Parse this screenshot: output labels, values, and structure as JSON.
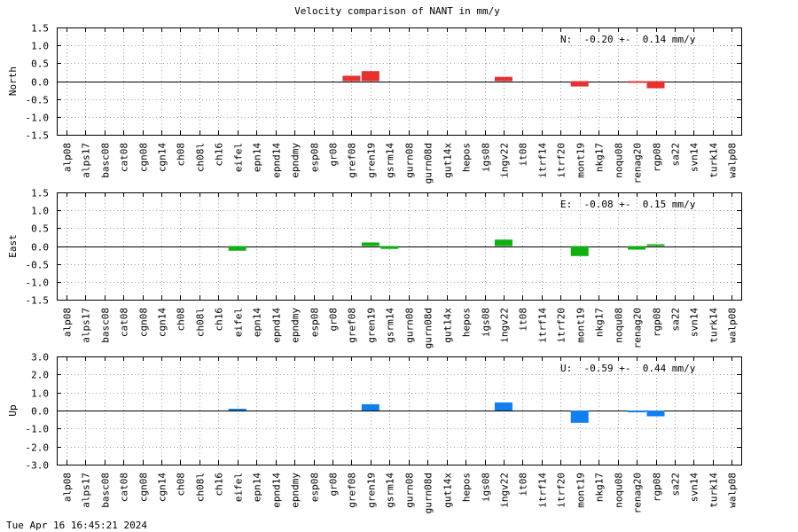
{
  "title": "Velocity comparison of NANT in mm/y",
  "footer": "Tue Apr 16 16:45:21 2024",
  "chart_data": [
    {
      "type": "bar",
      "ylabel": "North",
      "annotation": "N:  -0.20 +-  0.14 mm/y",
      "color": "#e83030",
      "ylim": [
        -1.5,
        1.5
      ],
      "yticks": [
        "1.5",
        "1.0",
        "0.5",
        "0.0",
        "-0.5",
        "-1.0",
        "-1.5"
      ],
      "ytick_values": [
        1.5,
        1.0,
        0.5,
        0.0,
        -0.5,
        -1.0,
        -1.5
      ],
      "grid": true,
      "categories": [
        "alp08",
        "alps17",
        "basc08",
        "cat08",
        "cgn08",
        "cgn14",
        "ch08",
        "ch08l",
        "ch16",
        "eifel",
        "epn14",
        "epnd14",
        "epndmy",
        "esp08",
        "gr08",
        "gref08",
        "gren19",
        "gsrm14",
        "gurn08",
        "gurn08d",
        "gut14x",
        "hepos",
        "igs08",
        "ingv22",
        "it08",
        "itrf14",
        "itrf20",
        "mont19",
        "nkg17",
        "noqu08",
        "renag20",
        "rgp08",
        "sa22",
        "svn14",
        "turk14",
        "walp08"
      ],
      "values": [
        0,
        0,
        0,
        0,
        0,
        0,
        0,
        0,
        0,
        0,
        0,
        0,
        0,
        0,
        0,
        0.15,
        0.28,
        0,
        0,
        0,
        0,
        0,
        0,
        0.12,
        0,
        0,
        0,
        -0.15,
        0,
        0,
        -0.03,
        -0.2,
        0,
        0,
        0,
        0
      ]
    },
    {
      "type": "bar",
      "ylabel": "East",
      "annotation": "E:  -0.08 +-  0.15 mm/y",
      "color": "#10b010",
      "ylim": [
        -1.5,
        1.5
      ],
      "yticks": [
        "1.5",
        "1.0",
        "0.5",
        "0.0",
        "-0.5",
        "-1.0",
        "-1.5"
      ],
      "ytick_values": [
        1.5,
        1.0,
        0.5,
        0.0,
        -0.5,
        -1.0,
        -1.5
      ],
      "grid": true,
      "categories": [
        "alp08",
        "alps17",
        "basc08",
        "cat08",
        "cgn08",
        "cgn14",
        "ch08",
        "ch08l",
        "ch16",
        "eifel",
        "epn14",
        "epnd14",
        "epndmy",
        "esp08",
        "gr08",
        "gref08",
        "gren19",
        "gsrm14",
        "gurn08",
        "gurn08d",
        "gut14x",
        "hepos",
        "igs08",
        "ingv22",
        "it08",
        "itrf14",
        "itrf20",
        "mont19",
        "nkg17",
        "noqu08",
        "renag20",
        "rgp08",
        "sa22",
        "svn14",
        "turk14",
        "walp08"
      ],
      "values": [
        0,
        0,
        0,
        0,
        0,
        0,
        0,
        0,
        0,
        -0.13,
        0,
        0,
        0,
        0,
        0,
        0,
        0.1,
        -0.08,
        0,
        0,
        0,
        0,
        0,
        0.18,
        0,
        0,
        0,
        -0.28,
        0,
        0,
        -0.1,
        0.05,
        0,
        0,
        0,
        0
      ]
    },
    {
      "type": "bar",
      "ylabel": "Up",
      "annotation": "U:  -0.59 +-  0.44 mm/y",
      "color": "#1080f0",
      "ylim": [
        -3.0,
        3.0
      ],
      "yticks": [
        "3.0",
        "2.0",
        "1.0",
        "0.0",
        "-1.0",
        "-2.0",
        "-3.0"
      ],
      "ytick_values": [
        3.0,
        2.0,
        1.0,
        0.0,
        -1.0,
        -2.0,
        -3.0
      ],
      "grid": true,
      "categories": [
        "alp08",
        "alps17",
        "basc08",
        "cat08",
        "cgn08",
        "cgn14",
        "ch08",
        "ch08l",
        "ch16",
        "eifel",
        "epn14",
        "epnd14",
        "epndmy",
        "esp08",
        "gr08",
        "gref08",
        "gren19",
        "gsrm14",
        "gurn08",
        "gurn08d",
        "gut14x",
        "hepos",
        "igs08",
        "ingv22",
        "it08",
        "itrf14",
        "itrf20",
        "mont19",
        "nkg17",
        "noqu08",
        "renag20",
        "rgp08",
        "sa22",
        "svn14",
        "turk14",
        "walp08"
      ],
      "values": [
        0,
        0,
        0,
        0,
        0,
        0,
        0,
        0,
        0,
        0.1,
        0,
        0,
        0,
        0,
        0,
        0,
        0.35,
        0,
        0,
        0,
        0,
        0,
        0,
        0.45,
        0,
        0,
        0,
        -0.68,
        0,
        0,
        -0.05,
        -0.32,
        0,
        0,
        0,
        0
      ]
    }
  ]
}
